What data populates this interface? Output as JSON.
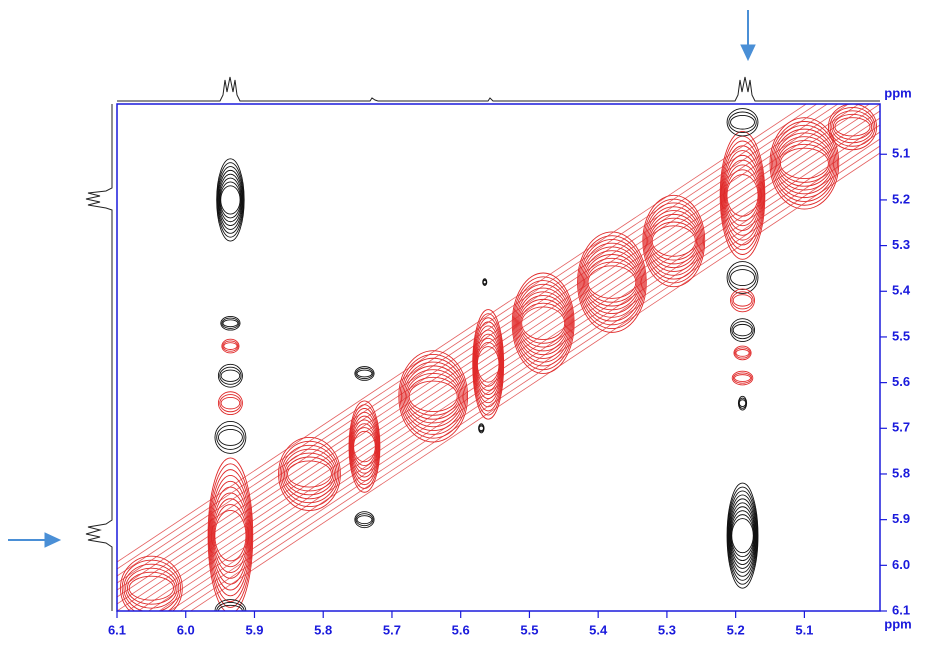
{
  "chart_data": {
    "type": "contour",
    "x_label": "ppm",
    "y_label": "ppm",
    "xlim": [
      6.1,
      4.99
    ],
    "ylim": [
      4.99,
      6.1
    ],
    "xticks": [
      {
        "value": 6.1,
        "label": "6.1"
      },
      {
        "value": 6.0,
        "label": "6.0"
      },
      5.9,
      5.8,
      5.7,
      5.6,
      5.5,
      5.4,
      5.3,
      5.2,
      5.1
    ],
    "yticks": [
      5.1,
      5.2,
      5.3,
      5.4,
      5.5,
      5.6,
      5.7,
      5.8,
      5.9,
      {
        "value": 6.0,
        "label": "6.0"
      },
      6.1
    ],
    "axis_color": "#1a1adc",
    "peaks": [
      {
        "x": 5.935,
        "y": 5.935,
        "w": 0.065,
        "h": 0.34,
        "color": "#e02a2a"
      },
      {
        "x": 5.19,
        "y": 5.19,
        "w": 0.065,
        "h": 0.28,
        "color": "#e02a2a"
      },
      {
        "x": 5.74,
        "y": 5.74,
        "w": 0.045,
        "h": 0.2,
        "color": "#e02a2a"
      },
      {
        "x": 5.56,
        "y": 5.56,
        "w": 0.045,
        "h": 0.24,
        "color": "#e02a2a"
      },
      {
        "x": 5.82,
        "y": 5.8,
        "w": 0.09,
        "h": 0.16,
        "color": "#e02a2a"
      },
      {
        "x": 5.64,
        "y": 5.63,
        "w": 0.1,
        "h": 0.2,
        "color": "#e02a2a"
      },
      {
        "x": 5.48,
        "y": 5.47,
        "w": 0.09,
        "h": 0.22,
        "color": "#e02a2a"
      },
      {
        "x": 5.38,
        "y": 5.38,
        "w": 0.1,
        "h": 0.22,
        "color": "#e02a2a"
      },
      {
        "x": 5.29,
        "y": 5.29,
        "w": 0.09,
        "h": 0.2,
        "color": "#e02a2a"
      },
      {
        "x": 5.1,
        "y": 5.12,
        "w": 0.1,
        "h": 0.2,
        "color": "#e02a2a"
      },
      {
        "x": 5.03,
        "y": 5.04,
        "w": 0.07,
        "h": 0.1,
        "color": "#e02a2a"
      },
      {
        "x": 6.05,
        "y": 6.05,
        "w": 0.09,
        "h": 0.14,
        "color": "#e02a2a"
      },
      {
        "x": 5.935,
        "y": 5.2,
        "w": 0.04,
        "h": 0.18,
        "color": "#111111"
      },
      {
        "x": 5.19,
        "y": 5.935,
        "w": 0.045,
        "h": 0.23,
        "color": "#111111"
      },
      {
        "x": 5.935,
        "y": 5.47,
        "w": 0.028,
        "h": 0.03,
        "color": "#111111"
      },
      {
        "x": 5.935,
        "y": 5.52,
        "w": 0.025,
        "h": 0.03,
        "color": "#e02a2a"
      },
      {
        "x": 5.935,
        "y": 5.585,
        "w": 0.035,
        "h": 0.05,
        "color": "#111111"
      },
      {
        "x": 5.935,
        "y": 5.645,
        "w": 0.035,
        "h": 0.05,
        "color": "#e02a2a"
      },
      {
        "x": 5.935,
        "y": 5.72,
        "w": 0.045,
        "h": 0.07,
        "color": "#111111"
      },
      {
        "x": 5.935,
        "y": 6.1,
        "w": 0.045,
        "h": 0.05,
        "color": "#111111"
      },
      {
        "x": 5.19,
        "y": 5.03,
        "w": 0.045,
        "h": 0.06,
        "color": "#111111"
      },
      {
        "x": 5.19,
        "y": 5.37,
        "w": 0.045,
        "h": 0.07,
        "color": "#111111"
      },
      {
        "x": 5.19,
        "y": 5.42,
        "w": 0.035,
        "h": 0.05,
        "color": "#e02a2a"
      },
      {
        "x": 5.19,
        "y": 5.485,
        "w": 0.035,
        "h": 0.05,
        "color": "#111111"
      },
      {
        "x": 5.19,
        "y": 5.535,
        "w": 0.025,
        "h": 0.03,
        "color": "#e02a2a"
      },
      {
        "x": 5.19,
        "y": 5.59,
        "w": 0.03,
        "h": 0.03,
        "color": "#e02a2a"
      },
      {
        "x": 5.19,
        "y": 5.645,
        "w": 0.012,
        "h": 0.03,
        "color": "#111111"
      },
      {
        "x": 5.74,
        "y": 5.58,
        "w": 0.028,
        "h": 0.03,
        "color": "#111111"
      },
      {
        "x": 5.74,
        "y": 5.9,
        "w": 0.028,
        "h": 0.035,
        "color": "#111111"
      },
      {
        "x": 5.565,
        "y": 5.38,
        "w": 0.006,
        "h": 0.015,
        "color": "#111111"
      },
      {
        "x": 5.57,
        "y": 5.7,
        "w": 0.008,
        "h": 0.02,
        "color": "#111111"
      }
    ]
  }
}
